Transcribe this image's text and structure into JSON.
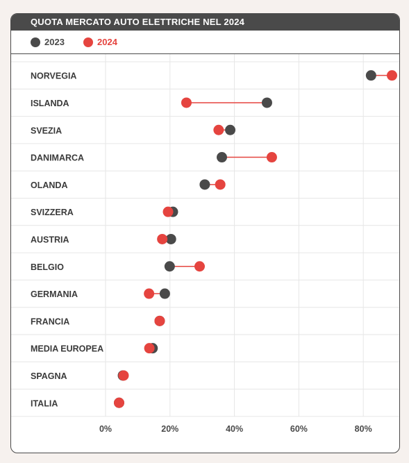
{
  "colors": {
    "2023": "#4a4a4a",
    "2024": "#e5443f",
    "grid": "#e6e6e6"
  },
  "chart_data": {
    "type": "dumbbell",
    "title": "QUOTA MERCATO AUTO ELETTRICHE NEL 2024",
    "legend": [
      {
        "name": "2023",
        "color": "#4a4a4a"
      },
      {
        "name": "2024",
        "color": "#e5443f"
      }
    ],
    "legend_position": "top-left",
    "x_ticks": [
      "0%",
      "20%",
      "40%",
      "60%",
      "80%"
    ],
    "xlim": [
      0,
      90
    ],
    "grid": true,
    "categories": [
      "NORVEGIA",
      "ISLANDA",
      "SVEZIA",
      "DANIMARCA",
      "OLANDA",
      "SVIZZERA",
      "AUSTRIA",
      "BELGIO",
      "GERMANIA",
      "FRANCIA",
      "MEDIA EUROPEA",
      "SPAGNA",
      "ITALIA"
    ],
    "series": [
      {
        "name": "2023",
        "values": [
          82.4,
          50.1,
          38.7,
          36.1,
          30.8,
          20.9,
          20.3,
          19.9,
          18.4,
          16.8,
          14.6,
          5.4,
          4.2
        ]
      },
      {
        "name": "2024",
        "values": [
          88.9,
          25.1,
          35.1,
          51.6,
          35.6,
          19.4,
          17.6,
          29.2,
          13.5,
          16.8,
          13.6,
          5.6,
          4.2
        ]
      }
    ]
  }
}
